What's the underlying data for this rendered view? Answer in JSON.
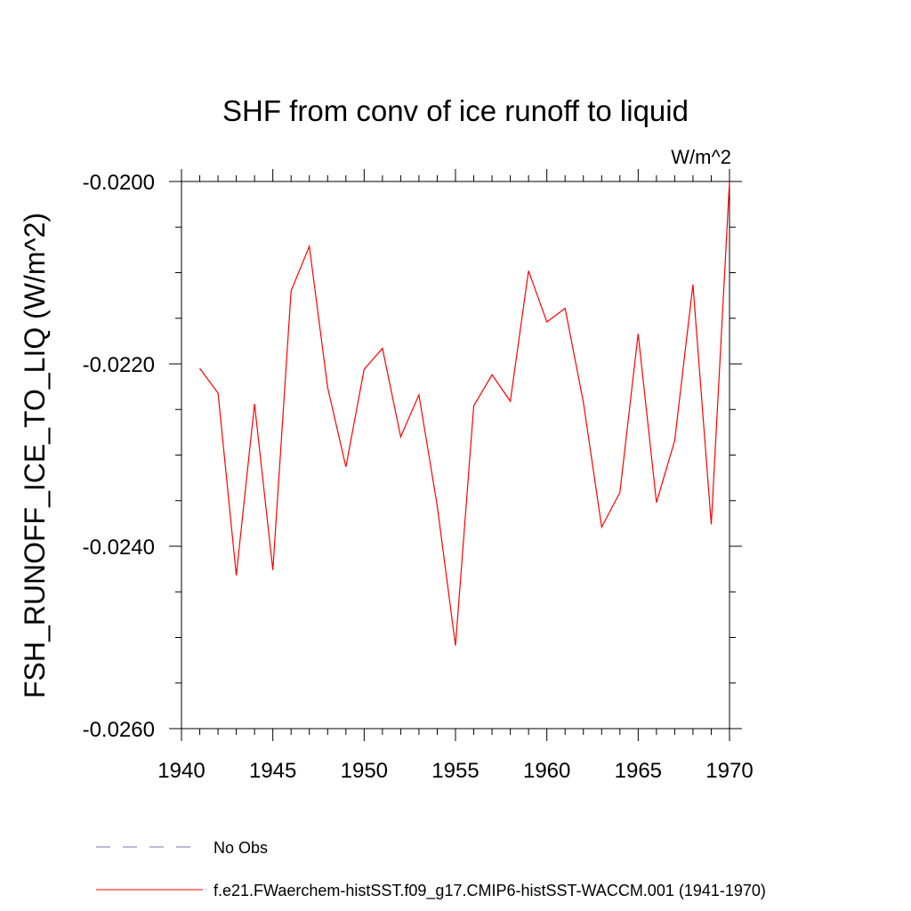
{
  "chart_data": {
    "type": "line",
    "title": "SHF from conv of ice runoff to liquid",
    "units_label": "W/m^2",
    "xlabel": "",
    "ylabel": "FSH_RUNOFF_ICE_TO_LIQ  (W/m^2)",
    "xlim": [
      1940,
      1970
    ],
    "ylim": [
      -0.026,
      -0.02
    ],
    "x_ticks": [
      1940,
      1945,
      1950,
      1955,
      1960,
      1965,
      1970
    ],
    "y_ticks": [
      -0.026,
      -0.024,
      -0.022,
      -0.02
    ],
    "x_tick_labels": [
      "1940",
      "1945",
      "1950",
      "1955",
      "1960",
      "1965",
      "1970"
    ],
    "y_tick_labels": [
      "-0.0260",
      "-0.0240",
      "-0.0220",
      "-0.0200"
    ],
    "grid": false,
    "legend_placement": "bottom",
    "series": [
      {
        "name": "No Obs",
        "color": "#7a6fb0",
        "dash": "dashed",
        "x": [],
        "y": []
      },
      {
        "name": "f.e21.FWaerchem-histSST.f09_g17.CMIP6-histSST-WACCM.001 (1941-1970)",
        "color": "#ff0000",
        "dash": "solid",
        "x": [
          1941,
          1942,
          1943,
          1944,
          1945,
          1946,
          1947,
          1948,
          1949,
          1950,
          1951,
          1952,
          1953,
          1954,
          1955,
          1956,
          1957,
          1958,
          1959,
          1960,
          1961,
          1962,
          1963,
          1964,
          1965,
          1966,
          1967,
          1968,
          1969,
          1970
        ],
        "y": [
          -0.02205,
          -0.02232,
          -0.02432,
          -0.02244,
          -0.02426,
          -0.0212,
          -0.02071,
          -0.02226,
          -0.02313,
          -0.02206,
          -0.02183,
          -0.0228,
          -0.02234,
          -0.02356,
          -0.02509,
          -0.02246,
          -0.02212,
          -0.02241,
          -0.02098,
          -0.02154,
          -0.02139,
          -0.02242,
          -0.02379,
          -0.02341,
          -0.02167,
          -0.02352,
          -0.02284,
          -0.02113,
          -0.02376,
          -0.02
        ]
      }
    ]
  }
}
